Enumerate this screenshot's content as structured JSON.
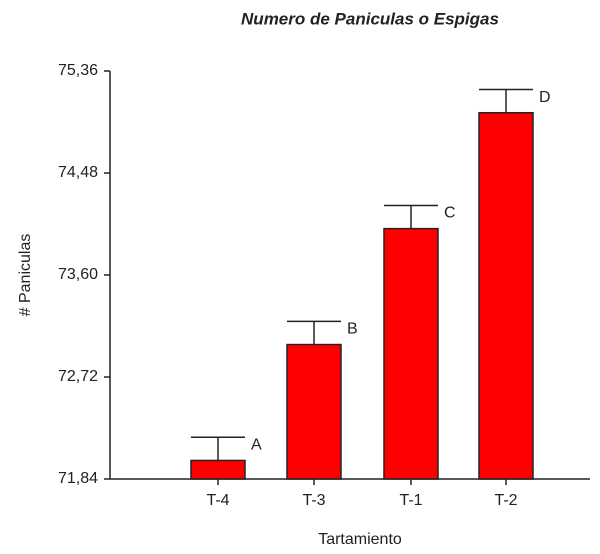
{
  "chart_data": {
    "type": "bar",
    "title": "Numero de Paniculas o Espigas",
    "x_label": "Tartamiento",
    "y_label": "# Paniculas",
    "categories": [
      "T-4",
      "T-3",
      "T-1",
      "T-2"
    ],
    "values": [
      72.0,
      73.0,
      74.0,
      75.0
    ],
    "errors": [
      0.2,
      0.2,
      0.2,
      0.2
    ],
    "annotations": [
      "A",
      "B",
      "C",
      "D"
    ],
    "color": "#ff0000",
    "ylim": [
      71.84,
      75.36
    ],
    "yticks": [
      {
        "value": 71.84,
        "label": "71,84"
      },
      {
        "value": 72.72,
        "label": "72,72"
      },
      {
        "value": 73.6,
        "label": "73,60"
      },
      {
        "value": 74.48,
        "label": "74,48"
      },
      {
        "value": 75.36,
        "label": "75,36"
      }
    ],
    "grid": false
  }
}
